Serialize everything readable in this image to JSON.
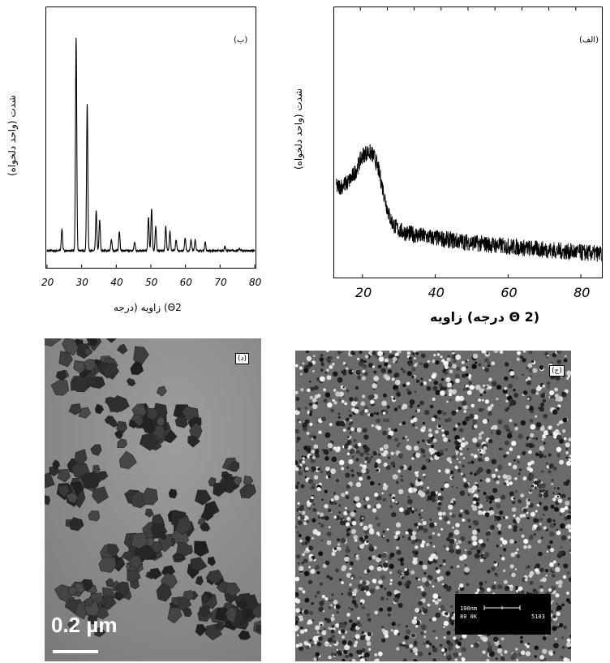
{
  "chart_data": [
    {
      "id": "b",
      "type": "line",
      "panel_label": "(ب)",
      "ylabel": "شدت (واحد دلخواه)",
      "xlabel": "زاویه (درجه (Θ2",
      "xlim": [
        20,
        80
      ],
      "xticks": [
        "20",
        "30",
        "40",
        "50",
        "60",
        "70",
        "80"
      ],
      "baseline": 4,
      "peaks": [
        {
          "x": 24.3,
          "y": 14
        },
        {
          "x": 28.4,
          "y": 100
        },
        {
          "x": 31.6,
          "y": 70
        },
        {
          "x": 34.2,
          "y": 22
        },
        {
          "x": 35.2,
          "y": 18
        },
        {
          "x": 38.6,
          "y": 9
        },
        {
          "x": 40.9,
          "y": 13
        },
        {
          "x": 45.3,
          "y": 8
        },
        {
          "x": 49.3,
          "y": 19
        },
        {
          "x": 50.2,
          "y": 23
        },
        {
          "x": 51.4,
          "y": 15
        },
        {
          "x": 54.3,
          "y": 15
        },
        {
          "x": 55.5,
          "y": 13
        },
        {
          "x": 57.3,
          "y": 9
        },
        {
          "x": 59.9,
          "y": 10
        },
        {
          "x": 61.6,
          "y": 9
        },
        {
          "x": 62.8,
          "y": 9
        },
        {
          "x": 65.7,
          "y": 8
        },
        {
          "x": 71.4,
          "y": 6
        },
        {
          "x": 75.6,
          "y": 5
        }
      ]
    },
    {
      "id": "a",
      "type": "line",
      "panel_label": "(الف)",
      "ylabel": "شدت (واحد دلخواه)",
      "xlabel": "زاویه (درجه Θ 2)",
      "xlim": [
        12,
        86
      ],
      "xticks": [
        "20",
        "40",
        "60",
        "80"
      ],
      "broad_peak": {
        "center": 23,
        "height": 60,
        "width": 5
      },
      "plateau": {
        "start": 12,
        "end": 20,
        "level": 40
      },
      "tail": {
        "start": 27,
        "level_start": 20,
        "end": 86,
        "level_end": 5
      }
    }
  ],
  "images": {
    "tem": {
      "panel_label": "(د)",
      "scale_text": "0.2 µm"
    },
    "sem": {
      "panel_label": "(ج)",
      "scale_line1": "100nm",
      "scale_line2": "80 0K",
      "scale_code": "5103"
    }
  }
}
